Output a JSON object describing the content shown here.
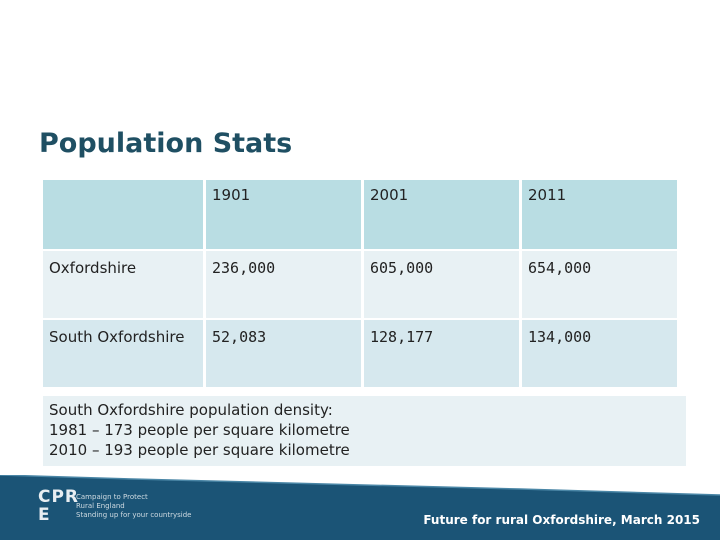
{
  "slide": {
    "title": "Population Stats"
  },
  "table": {
    "header": [
      "",
      "1901",
      "2001",
      "2011"
    ],
    "rows": [
      {
        "label": "Oxfordshire",
        "values": [
          "236,000",
          "605,000",
          "654,000"
        ]
      },
      {
        "label": "South Oxfordshire",
        "values": [
          "52,083",
          "128,177",
          "134,000"
        ]
      }
    ]
  },
  "note": {
    "lines": [
      "South Oxfordshire population density:",
      "1981 – 173 people per square kilometre",
      "2010 – 193 people per square kilometre"
    ]
  },
  "footer": {
    "logo_mark_line1": "CPR",
    "logo_mark_line2": "E",
    "logo_line1": "Campaign to Protect",
    "logo_line2": "Rural England",
    "logo_line3": "Standing up for your countryside",
    "caption": "Future for rural Oxfordshire, March 2015"
  },
  "colors": {
    "title": "#1f4f63",
    "header_row": "#b9dde3",
    "row_light": "#e8f1f4",
    "row_mid": "#d6e8ee",
    "footer_band": "#1b5476"
  }
}
